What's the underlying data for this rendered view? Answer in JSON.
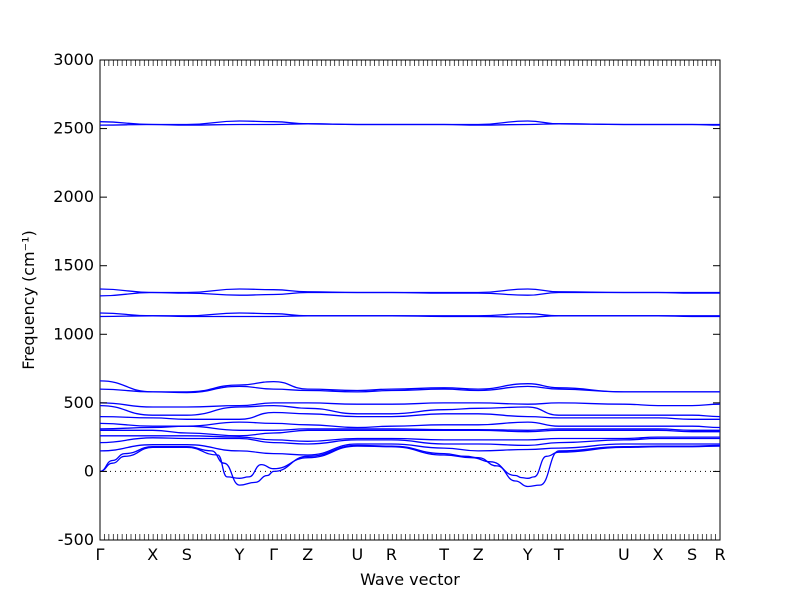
{
  "chart_data": {
    "type": "line",
    "xlabel": "Wave vector",
    "ylabel": "Frequency (cm⁻¹)",
    "ylim": [
      -500,
      3000
    ],
    "y_ticks": [
      -500,
      0,
      500,
      1000,
      1500,
      2000,
      2500,
      3000
    ],
    "x_ticks": [
      "Γ",
      "X",
      "S",
      "Y",
      "Γ",
      "Z",
      "U",
      "R",
      "T",
      "Z",
      "Y",
      "T",
      "U",
      "X",
      "S",
      "R"
    ],
    "x_tick_positions": [
      0,
      0.085,
      0.14,
      0.225,
      0.28,
      0.335,
      0.415,
      0.47,
      0.555,
      0.61,
      0.69,
      0.74,
      0.845,
      0.9,
      0.955,
      1.0
    ],
    "zero_line": "dotted",
    "grid": false,
    "series_color": "#0000ff",
    "series": [
      {
        "x": [
          0,
          0.085,
          0.14,
          0.225,
          0.28,
          0.335,
          0.415,
          0.47,
          0.555,
          0.61,
          0.69,
          0.74,
          0.845,
          0.9,
          0.955,
          1.0
        ],
        "values": [
          2550,
          2530,
          2530,
          2555,
          2550,
          2535,
          2530,
          2530,
          2530,
          2530,
          2555,
          2535,
          2530,
          2530,
          2530,
          2530
        ]
      },
      {
        "x": [
          0,
          0.085,
          0.14,
          0.225,
          0.28,
          0.335,
          0.415,
          0.47,
          0.555,
          0.61,
          0.69,
          0.74,
          0.845,
          0.9,
          0.955,
          1.0
        ],
        "values": [
          2525,
          2530,
          2525,
          2530,
          2530,
          2535,
          2530,
          2530,
          2530,
          2525,
          2530,
          2535,
          2530,
          2530,
          2530,
          2525
        ]
      },
      {
        "x": [
          0,
          0.085,
          0.14,
          0.225,
          0.28,
          0.335,
          0.415,
          0.47,
          0.555,
          0.61,
          0.69,
          0.74,
          0.845,
          0.9,
          0.955,
          1.0
        ],
        "values": [
          1330,
          1305,
          1305,
          1330,
          1325,
          1310,
          1305,
          1305,
          1305,
          1305,
          1330,
          1310,
          1305,
          1305,
          1305,
          1305
        ]
      },
      {
        "x": [
          0,
          0.085,
          0.14,
          0.225,
          0.28,
          0.335,
          0.415,
          0.47,
          0.555,
          0.61,
          0.69,
          0.74,
          0.845,
          0.9,
          0.955,
          1.0
        ],
        "values": [
          1280,
          1305,
          1300,
          1285,
          1290,
          1305,
          1305,
          1305,
          1300,
          1300,
          1285,
          1305,
          1305,
          1305,
          1300,
          1300
        ]
      },
      {
        "x": [
          0,
          0.085,
          0.14,
          0.225,
          0.28,
          0.335,
          0.415,
          0.47,
          0.555,
          0.61,
          0.69,
          0.74,
          0.845,
          0.9,
          0.955,
          1.0
        ],
        "values": [
          1155,
          1135,
          1135,
          1155,
          1150,
          1135,
          1135,
          1135,
          1135,
          1135,
          1150,
          1135,
          1135,
          1135,
          1135,
          1135
        ]
      },
      {
        "x": [
          0,
          0.085,
          0.14,
          0.225,
          0.28,
          0.335,
          0.415,
          0.47,
          0.555,
          0.61,
          0.69,
          0.74,
          0.845,
          0.9,
          0.955,
          1.0
        ],
        "values": [
          1130,
          1135,
          1130,
          1130,
          1130,
          1135,
          1135,
          1135,
          1130,
          1130,
          1125,
          1135,
          1135,
          1135,
          1130,
          1130
        ]
      },
      {
        "x": [
          0,
          0.085,
          0.14,
          0.225,
          0.28,
          0.335,
          0.415,
          0.47,
          0.555,
          0.61,
          0.69,
          0.74,
          0.845,
          0.9,
          0.955,
          1.0
        ],
        "values": [
          660,
          580,
          580,
          630,
          655,
          600,
          590,
          600,
          610,
          600,
          640,
          610,
          580,
          580,
          580,
          580
        ]
      },
      {
        "x": [
          0,
          0.085,
          0.14,
          0.225,
          0.28,
          0.335,
          0.415,
          0.47,
          0.555,
          0.61,
          0.69,
          0.74,
          0.845,
          0.9,
          0.955,
          1.0
        ],
        "values": [
          600,
          580,
          575,
          620,
          600,
          590,
          580,
          590,
          600,
          590,
          620,
          600,
          580,
          580,
          580,
          580
        ]
      },
      {
        "x": [
          0,
          0.085,
          0.14,
          0.225,
          0.28,
          0.335,
          0.415,
          0.47,
          0.555,
          0.61,
          0.69,
          0.74,
          0.845,
          0.9,
          0.955,
          1.0
        ],
        "values": [
          500,
          470,
          470,
          480,
          500,
          500,
          490,
          490,
          500,
          500,
          490,
          500,
          490,
          480,
          480,
          490
        ]
      },
      {
        "x": [
          0,
          0.085,
          0.14,
          0.225,
          0.28,
          0.335,
          0.415,
          0.47,
          0.555,
          0.61,
          0.69,
          0.74,
          0.845,
          0.9,
          0.955,
          1.0
        ],
        "values": [
          480,
          410,
          410,
          470,
          480,
          460,
          420,
          420,
          450,
          460,
          470,
          410,
          410,
          410,
          410,
          400
        ]
      },
      {
        "x": [
          0,
          0.085,
          0.14,
          0.225,
          0.28,
          0.335,
          0.415,
          0.47,
          0.555,
          0.61,
          0.69,
          0.74,
          0.845,
          0.9,
          0.955,
          1.0
        ],
        "values": [
          400,
          390,
          380,
          380,
          430,
          420,
          400,
          400,
          420,
          420,
          400,
          390,
          390,
          390,
          380,
          380
        ]
      },
      {
        "x": [
          0,
          0.085,
          0.14,
          0.225,
          0.28,
          0.335,
          0.415,
          0.47,
          0.555,
          0.61,
          0.69,
          0.74,
          0.845,
          0.9,
          0.955,
          1.0
        ],
        "values": [
          350,
          330,
          330,
          360,
          350,
          340,
          320,
          330,
          340,
          340,
          360,
          330,
          330,
          330,
          330,
          320
        ]
      },
      {
        "x": [
          0,
          0.085,
          0.14,
          0.225,
          0.28,
          0.335,
          0.415,
          0.47,
          0.555,
          0.61,
          0.69,
          0.74,
          0.845,
          0.9,
          0.955,
          1.0
        ],
        "values": [
          310,
          320,
          330,
          300,
          300,
          310,
          310,
          310,
          305,
          305,
          300,
          310,
          310,
          310,
          300,
          300
        ]
      },
      {
        "x": [
          0,
          0.085,
          0.14,
          0.225,
          0.28,
          0.335,
          0.415,
          0.47,
          0.555,
          0.61,
          0.69,
          0.74,
          0.845,
          0.9,
          0.955,
          1.0
        ],
        "values": [
          300,
          300,
          280,
          260,
          280,
          300,
          300,
          300,
          300,
          300,
          290,
          300,
          300,
          300,
          290,
          290
        ]
      },
      {
        "x": [
          0,
          0.085,
          0.14,
          0.225,
          0.28,
          0.335,
          0.415,
          0.47,
          0.555,
          0.61,
          0.69,
          0.74,
          0.845,
          0.9,
          0.955,
          1.0
        ],
        "values": [
          260,
          260,
          260,
          250,
          230,
          220,
          240,
          240,
          230,
          230,
          230,
          240,
          240,
          250,
          250,
          250
        ]
      },
      {
        "x": [
          0,
          0.085,
          0.14,
          0.225,
          0.28,
          0.335,
          0.415,
          0.47,
          0.555,
          0.61,
          0.69,
          0.74,
          0.845,
          0.9,
          0.955,
          1.0
        ],
        "values": [
          210,
          245,
          240,
          240,
          210,
          200,
          230,
          230,
          200,
          200,
          190,
          210,
          230,
          240,
          240,
          240
        ]
      },
      {
        "x": [
          0,
          0.085,
          0.14,
          0.225,
          0.28,
          0.335,
          0.415,
          0.47,
          0.555,
          0.61,
          0.69,
          0.74,
          0.845,
          0.9,
          0.955,
          1.0
        ],
        "values": [
          150,
          195,
          195,
          150,
          130,
          120,
          200,
          200,
          170,
          150,
          160,
          170,
          200,
          200,
          200,
          200
        ]
      },
      {
        "x": [
          0,
          0.02,
          0.04,
          0.085,
          0.14,
          0.18,
          0.2,
          0.225,
          0.25,
          0.27,
          0.28,
          0.335,
          0.415,
          0.47,
          0.555,
          0.59,
          0.61,
          0.64,
          0.67,
          0.69,
          0.71,
          0.74,
          0.845,
          0.9,
          0.955,
          1.0
        ],
        "values": [
          0,
          80,
          130,
          180,
          180,
          150,
          60,
          -100,
          -80,
          -30,
          0,
          110,
          190,
          185,
          130,
          110,
          100,
          40,
          -70,
          -110,
          -100,
          150,
          180,
          185,
          185,
          190
        ]
      },
      {
        "x": [
          0,
          0.02,
          0.04,
          0.085,
          0.14,
          0.19,
          0.205,
          0.225,
          0.24,
          0.26,
          0.28,
          0.335,
          0.415,
          0.47,
          0.555,
          0.6,
          0.63,
          0.67,
          0.68,
          0.69,
          0.7,
          0.72,
          0.74,
          0.845,
          0.9,
          0.955,
          1.0
        ],
        "values": [
          0,
          60,
          110,
          175,
          175,
          120,
          -40,
          -50,
          -40,
          50,
          20,
          100,
          185,
          180,
          120,
          100,
          70,
          -30,
          -45,
          -50,
          -40,
          110,
          140,
          175,
          180,
          180,
          185
        ]
      }
    ]
  }
}
